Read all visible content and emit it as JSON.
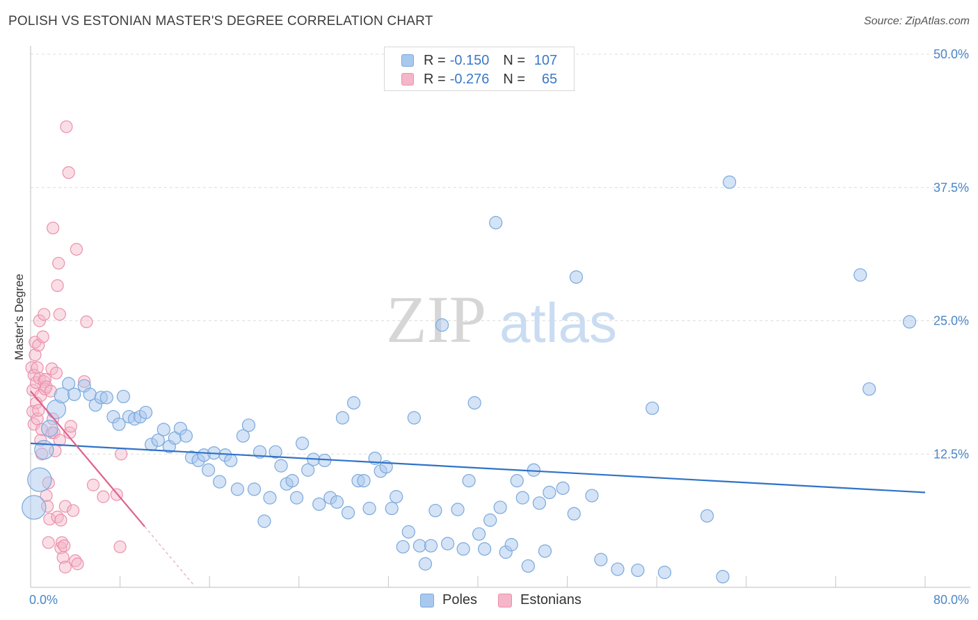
{
  "header": {
    "title": "POLISH VS ESTONIAN MASTER'S DEGREE CORRELATION CHART",
    "source_label": "Source:",
    "source_value": "ZipAtlas.com"
  },
  "watermark": {
    "part1": "ZIP",
    "part2": "atlas"
  },
  "legend": {
    "rows": [
      {
        "r_label": "R =",
        "r_value": "-0.150",
        "n_label": "N =",
        "n_value": "107"
      },
      {
        "r_label": "R =",
        "r_value": "-0.276",
        "n_label": "N =",
        "n_value": "65"
      }
    ]
  },
  "bottom_legend": {
    "poles": "Poles",
    "estonians": "Estonians"
  },
  "colors": {
    "poles_fill": "#a9c8ee",
    "poles_stroke": "#7aa8dc",
    "poles_line": "#2f72c8",
    "estonians_fill": "#f4b6c8",
    "estonians_stroke": "#eb8fac",
    "estonians_line": "#e0608c",
    "grid": "#dcdcdc",
    "axis_text": "#4a86c8"
  },
  "chart_data": {
    "type": "scatter",
    "title": "POLISH VS ESTONIAN MASTER'S DEGREE CORRELATION CHART",
    "xlabel": "",
    "ylabel": "Master's Degree",
    "xlim": [
      0,
      80
    ],
    "ylim": [
      0,
      50
    ],
    "x_tick_labels": [
      "0.0%",
      "80.0%"
    ],
    "y_tick_labels": [
      "12.5%",
      "25.0%",
      "37.5%",
      "50.0%"
    ],
    "y_ticks": [
      12.5,
      25.0,
      37.5,
      50.0
    ],
    "grid": true,
    "legend_position": "top-center",
    "series": [
      {
        "name": "Poles",
        "r": -0.15,
        "n": 107,
        "trend": {
          "x0": 0,
          "y0": 13.5,
          "x1": 80,
          "y1": 8.9
        },
        "points": [
          [
            0.3,
            7.5,
            1.9
          ],
          [
            0.8,
            10.1,
            1.9
          ],
          [
            1.2,
            12.9,
            1.5
          ],
          [
            1.7,
            14.9,
            1.3
          ],
          [
            2.3,
            16.7,
            1.5
          ],
          [
            2.8,
            18.0,
            1.2
          ],
          [
            3.4,
            19.1,
            1.0
          ],
          [
            3.9,
            18.1,
            1.0
          ],
          [
            4.8,
            18.9,
            1.0
          ],
          [
            5.3,
            18.1,
            1.0
          ],
          [
            5.8,
            17.1,
            1.0
          ],
          [
            6.3,
            17.8,
            1.0
          ],
          [
            6.8,
            17.8,
            1.0
          ],
          [
            7.4,
            16.0,
            1.0
          ],
          [
            7.9,
            15.3,
            1.0
          ],
          [
            8.3,
            17.9,
            1.0
          ],
          [
            8.8,
            16.0,
            1.0
          ],
          [
            9.3,
            15.8,
            1.0
          ],
          [
            9.8,
            16.0,
            1.0
          ],
          [
            10.3,
            16.4,
            1.0
          ],
          [
            10.8,
            13.4,
            1.0
          ],
          [
            11.4,
            13.8,
            1.0
          ],
          [
            11.9,
            14.8,
            1.0
          ],
          [
            12.4,
            13.2,
            1.0
          ],
          [
            12.9,
            14.0,
            1.0
          ],
          [
            13.4,
            14.9,
            1.0
          ],
          [
            13.9,
            14.2,
            1.0
          ],
          [
            14.4,
            12.2,
            1.0
          ],
          [
            15.0,
            11.9,
            1.0
          ],
          [
            15.5,
            12.4,
            1.0
          ],
          [
            15.9,
            11.0,
            1.0
          ],
          [
            16.4,
            12.6,
            1.0
          ],
          [
            16.9,
            9.9,
            1.0
          ],
          [
            17.4,
            12.4,
            1.0
          ],
          [
            17.9,
            11.9,
            1.0
          ],
          [
            18.5,
            9.2,
            1.0
          ],
          [
            19.0,
            14.2,
            1.0
          ],
          [
            19.5,
            15.2,
            1.0
          ],
          [
            20.0,
            9.2,
            1.0
          ],
          [
            20.5,
            12.7,
            1.0
          ],
          [
            20.9,
            6.2,
            1.0
          ],
          [
            21.4,
            8.4,
            1.0
          ],
          [
            21.9,
            12.7,
            1.0
          ],
          [
            22.4,
            11.4,
            1.0
          ],
          [
            22.9,
            9.7,
            1.0
          ],
          [
            23.4,
            10.0,
            1.0
          ],
          [
            23.8,
            8.4,
            1.0
          ],
          [
            24.3,
            13.5,
            1.0
          ],
          [
            24.8,
            11.0,
            1.0
          ],
          [
            25.3,
            12.0,
            1.0
          ],
          [
            25.8,
            7.8,
            1.0
          ],
          [
            26.3,
            11.9,
            1.0
          ],
          [
            26.8,
            8.4,
            1.0
          ],
          [
            27.4,
            8.0,
            1.0
          ],
          [
            27.9,
            15.9,
            1.0
          ],
          [
            28.4,
            7.0,
            1.0
          ],
          [
            28.9,
            17.3,
            1.0
          ],
          [
            29.3,
            10.0,
            1.0
          ],
          [
            29.8,
            10.0,
            1.0
          ],
          [
            30.3,
            7.4,
            1.0
          ],
          [
            30.8,
            12.1,
            1.0
          ],
          [
            31.3,
            10.9,
            1.0
          ],
          [
            31.8,
            11.3,
            1.0
          ],
          [
            32.3,
            7.4,
            1.0
          ],
          [
            32.7,
            8.5,
            1.0
          ],
          [
            33.3,
            3.8,
            1.0
          ],
          [
            33.8,
            5.2,
            1.0
          ],
          [
            34.3,
            15.9,
            1.0
          ],
          [
            34.8,
            3.9,
            1.0
          ],
          [
            35.3,
            2.2,
            1.0
          ],
          [
            35.8,
            3.9,
            1.0
          ],
          [
            36.2,
            7.2,
            1.0
          ],
          [
            36.8,
            24.6,
            1.0
          ],
          [
            37.3,
            4.1,
            1.0
          ],
          [
            38.2,
            7.3,
            1.0
          ],
          [
            38.7,
            3.6,
            1.0
          ],
          [
            39.2,
            10.0,
            1.0
          ],
          [
            39.7,
            17.3,
            1.0
          ],
          [
            40.1,
            5.0,
            1.0
          ],
          [
            40.6,
            3.6,
            1.0
          ],
          [
            41.1,
            6.3,
            1.0
          ],
          [
            41.6,
            34.2,
            1.0
          ],
          [
            42.0,
            7.5,
            1.0
          ],
          [
            42.5,
            3.3,
            1.0
          ],
          [
            43.0,
            4.0,
            1.0
          ],
          [
            43.5,
            10.0,
            1.0
          ],
          [
            44.0,
            8.4,
            1.0
          ],
          [
            44.5,
            2.0,
            1.0
          ],
          [
            45.0,
            11.0,
            1.0
          ],
          [
            45.5,
            7.9,
            1.0
          ],
          [
            46.0,
            3.4,
            1.0
          ],
          [
            46.4,
            8.9,
            1.0
          ],
          [
            47.6,
            9.3,
            1.0
          ],
          [
            48.6,
            6.9,
            1.0
          ],
          [
            48.8,
            29.1,
            1.0
          ],
          [
            50.2,
            8.6,
            1.0
          ],
          [
            51.0,
            2.6,
            1.0
          ],
          [
            52.5,
            1.7,
            1.0
          ],
          [
            54.3,
            1.6,
            1.0
          ],
          [
            55.6,
            16.8,
            1.0
          ],
          [
            56.7,
            1.4,
            1.0
          ],
          [
            60.5,
            6.7,
            1.0
          ],
          [
            61.9,
            1.0,
            1.0
          ],
          [
            62.5,
            38.0,
            1.0
          ],
          [
            74.2,
            29.3,
            1.0
          ],
          [
            75.0,
            18.6,
            1.0
          ],
          [
            78.6,
            24.9,
            1.0
          ]
        ]
      },
      {
        "name": "Estonians",
        "r": -0.276,
        "n": 65,
        "trend": {
          "x0": 0,
          "y0": 18.4,
          "x1": 10.2,
          "y1": 5.7
        },
        "trend_dashed": {
          "x0": 10.2,
          "y0": 5.7,
          "x1": 14.6,
          "y1": 0.2
        },
        "points": [
          [
            0.1,
            20.6
          ],
          [
            0.2,
            18.5
          ],
          [
            0.2,
            16.5
          ],
          [
            0.3,
            15.3
          ],
          [
            0.3,
            19.9
          ],
          [
            0.4,
            21.8
          ],
          [
            0.4,
            23.0
          ],
          [
            0.5,
            17.3
          ],
          [
            0.5,
            19.2
          ],
          [
            0.6,
            20.6
          ],
          [
            0.6,
            15.8
          ],
          [
            0.7,
            16.6
          ],
          [
            0.7,
            22.7
          ],
          [
            0.8,
            25.0
          ],
          [
            0.8,
            19.6
          ],
          [
            0.9,
            18.0
          ],
          [
            0.9,
            13.8
          ],
          [
            1.0,
            12.5
          ],
          [
            1.0,
            14.8
          ],
          [
            1.1,
            23.5
          ],
          [
            1.2,
            19.3
          ],
          [
            1.2,
            25.6
          ],
          [
            1.3,
            19.5
          ],
          [
            1.3,
            18.6
          ],
          [
            1.4,
            18.8
          ],
          [
            1.4,
            8.6
          ],
          [
            1.5,
            7.6
          ],
          [
            1.6,
            9.8
          ],
          [
            1.6,
            4.2
          ],
          [
            1.7,
            6.4
          ],
          [
            1.8,
            18.4
          ],
          [
            1.9,
            20.5
          ],
          [
            1.9,
            14.5
          ],
          [
            2.0,
            15.8
          ],
          [
            2.0,
            33.7
          ],
          [
            2.1,
            14.5
          ],
          [
            2.2,
            12.8
          ],
          [
            2.3,
            20.1
          ],
          [
            2.4,
            6.6
          ],
          [
            2.4,
            28.3
          ],
          [
            2.5,
            30.4
          ],
          [
            2.6,
            25.6
          ],
          [
            2.6,
            13.8
          ],
          [
            2.7,
            6.3
          ],
          [
            2.7,
            3.7
          ],
          [
            2.8,
            4.2
          ],
          [
            2.9,
            2.8
          ],
          [
            3.0,
            3.9
          ],
          [
            3.1,
            1.9
          ],
          [
            3.1,
            7.6
          ],
          [
            3.2,
            43.2
          ],
          [
            3.4,
            38.9
          ],
          [
            3.5,
            14.5
          ],
          [
            3.6,
            15.1
          ],
          [
            3.8,
            7.2
          ],
          [
            4.0,
            2.5
          ],
          [
            4.1,
            31.7
          ],
          [
            4.2,
            2.2
          ],
          [
            4.8,
            19.3
          ],
          [
            5.0,
            24.9
          ],
          [
            5.6,
            9.6
          ],
          [
            6.5,
            8.5
          ],
          [
            7.7,
            8.7
          ],
          [
            8.0,
            3.8
          ],
          [
            8.1,
            12.5
          ]
        ]
      }
    ]
  }
}
